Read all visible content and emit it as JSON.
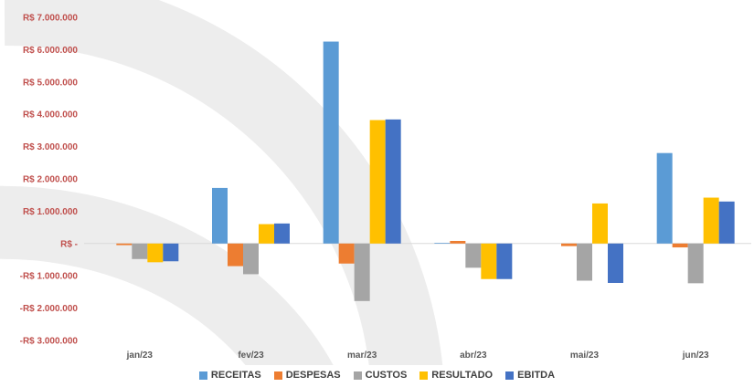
{
  "chart_data": {
    "type": "bar",
    "title": "",
    "xlabel": "",
    "ylabel": "",
    "categories": [
      "jan/23",
      "fev/23",
      "mar/23",
      "abr/23",
      "mai/23",
      "jun/23"
    ],
    "ylim": [
      -3000000,
      7000000
    ],
    "yticks": [
      7000000,
      6000000,
      5000000,
      4000000,
      3000000,
      2000000,
      1000000,
      0,
      -1000000,
      -2000000,
      -3000000
    ],
    "ytick_labels": [
      "R$ 7.000.000",
      "R$ 6.000.000",
      "R$ 5.000.000",
      "R$ 4.000.000",
      "R$ 3.000.000",
      "R$ 2.000.000",
      "R$ 1.000.000",
      "R$ -",
      "-R$ 1.000.000",
      "-R$ 2.000.000",
      "-R$ 3.000.000"
    ],
    "grid": false,
    "legend_position": "bottom",
    "series": [
      {
        "name": "RECEITAS",
        "color": "#5b9bd5",
        "values": [
          0,
          1720000,
          6250000,
          20000,
          0,
          2800000
        ]
      },
      {
        "name": "DESPESAS",
        "color": "#ed7d31",
        "values": [
          -50000,
          -700000,
          -620000,
          80000,
          -80000,
          -120000
        ]
      },
      {
        "name": "CUSTOS",
        "color": "#a5a5a5",
        "values": [
          -480000,
          -950000,
          -1780000,
          -750000,
          -1150000,
          -1230000
        ]
      },
      {
        "name": "RESULTADO",
        "color": "#ffc000",
        "values": [
          -580000,
          600000,
          3820000,
          -1100000,
          1240000,
          1420000
        ]
      },
      {
        "name": "EBITDA",
        "color": "#4472c4",
        "values": [
          -550000,
          620000,
          3840000,
          -1100000,
          -1220000,
          1300000
        ]
      }
    ]
  }
}
